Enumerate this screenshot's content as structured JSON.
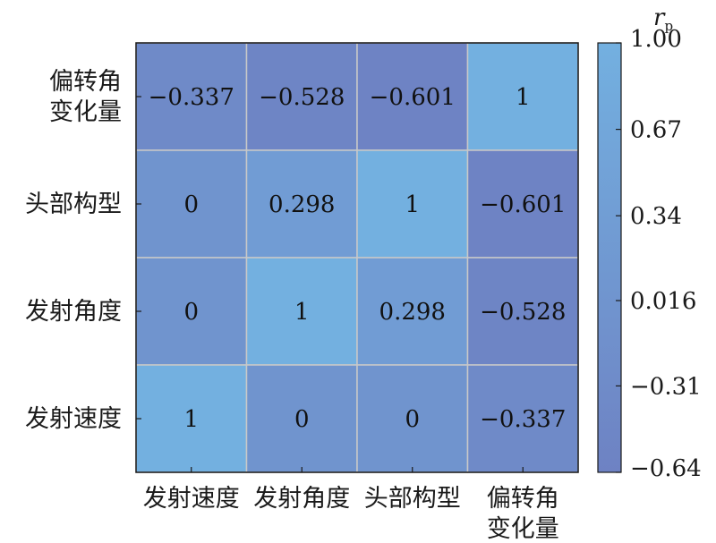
{
  "chart_data": {
    "type": "heatmap",
    "x_categories": [
      "发射速度",
      "发射角度",
      "头部构型",
      "偏转角\n变化量"
    ],
    "y_categories": [
      "偏转角\n变化量",
      "头部构型",
      "发射角度",
      "发射速度"
    ],
    "values": [
      [
        -0.337,
        -0.528,
        -0.601,
        1
      ],
      [
        0,
        0.298,
        1,
        -0.601
      ],
      [
        0,
        1,
        0.298,
        -0.528
      ],
      [
        1,
        0,
        0,
        -0.337
      ]
    ],
    "cell_labels": [
      [
        "−0.337",
        "−0.528",
        "−0.601",
        "1"
      ],
      [
        "0",
        "0.298",
        "1",
        "−0.601"
      ],
      [
        "0",
        "1",
        "0.298",
        "−0.528"
      ],
      [
        "1",
        "0",
        "0",
        "−0.337"
      ]
    ],
    "colorbar": {
      "label_main": "r",
      "label_sub": "p",
      "range": [
        -0.64,
        1.0
      ],
      "ticks": [
        1.0,
        0.67,
        0.34,
        0.016,
        -0.31,
        -0.64
      ],
      "tick_labels": [
        "1.00",
        "0.67",
        "0.34",
        "0.016",
        "−0.31",
        "−0.64"
      ],
      "color_low": "#6e82c3",
      "color_high": "#73b0e0"
    },
    "grid": true,
    "grid_color": "#c8c8c8"
  }
}
